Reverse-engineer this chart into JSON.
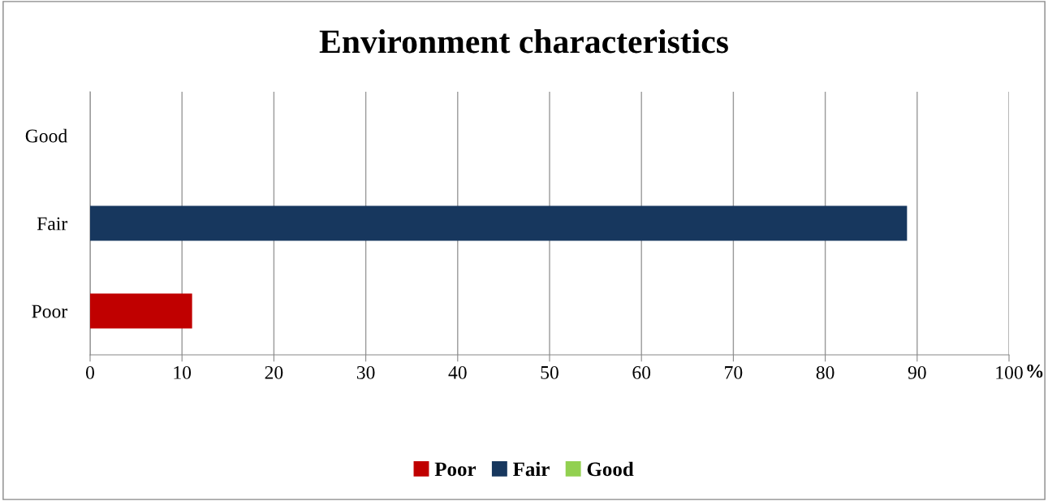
{
  "chart_data": {
    "type": "bar",
    "orientation": "horizontal",
    "title": "Environment characteristics",
    "xlabel": "%",
    "categories": [
      "Good",
      "Fair",
      "Poor"
    ],
    "series": [
      {
        "name": "Poor",
        "color": "#c00000",
        "values": [
          null,
          null,
          11.1
        ]
      },
      {
        "name": "Fair",
        "color": "#17375e",
        "values": [
          null,
          88.9,
          null
        ]
      },
      {
        "name": "Good",
        "color": "#92d050",
        "values": [
          0,
          null,
          null
        ]
      }
    ],
    "xlim": [
      0,
      100
    ],
    "xticks": [
      0,
      10,
      20,
      30,
      40,
      50,
      60,
      70,
      80,
      90,
      100
    ],
    "grid": "x",
    "legend": "bottom"
  }
}
